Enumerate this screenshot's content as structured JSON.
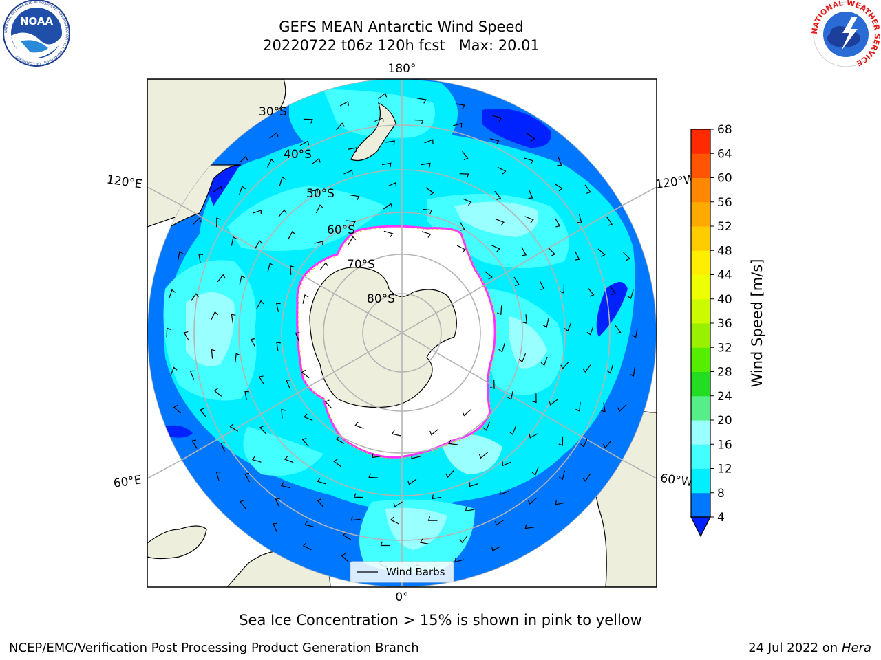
{
  "header": {
    "title": "GEFS MEAN Antarctic Wind Speed",
    "subtitle": "20220722 t06z 120h fcst   Max: 20.01"
  },
  "logos": {
    "left": {
      "icon": "noaa-logo",
      "text": "NOAA",
      "ring_text": "NATIONAL OCEANIC AND ATMOSPHERIC ADMINISTRATION · U.S. DEPARTMENT OF COMMERCE"
    },
    "right": {
      "icon": "nws-logo",
      "ring_text": "NATIONAL WEATHER SERVICE"
    }
  },
  "map": {
    "longitude_labels": {
      "top": "180°",
      "bottom": "0°",
      "upper_left": "120°E",
      "lower_left": "60°E",
      "upper_right": "120°W",
      "lower_right": "60°W"
    },
    "latitude_labels": [
      "30°S",
      "40°S",
      "50°S",
      "60°S",
      "70°S",
      "80°S"
    ],
    "legend_label": "Wind Barbs",
    "colors": {
      "land": "#eeeedc",
      "sea_ice": "#ffffff",
      "ice_edge": "#ff33ff",
      "ice_fringe": "#ffbb22",
      "grid": "#b4b4b4"
    }
  },
  "colorbar": {
    "label": "Wind Speed [m/s]",
    "ticks": [
      "4",
      "8",
      "12",
      "16",
      "20",
      "24",
      "28",
      "32",
      "36",
      "40",
      "44",
      "48",
      "52",
      "56",
      "60",
      "64",
      "68"
    ],
    "colors": [
      "#0077ff",
      "#00eeff",
      "#44ffff",
      "#99ffff",
      "#55ee88",
      "#22dd22",
      "#55ee00",
      "#99f000",
      "#ccfa00",
      "#eeff00",
      "#ffee00",
      "#ffcc00",
      "#ffaa00",
      "#ff8800",
      "#ff5500",
      "#ff2a00"
    ],
    "under_color": "#0022ff"
  },
  "footer": {
    "note": "Sea Ice Concentration > 15% is shown in pink to yellow",
    "left": "NCEP/EMC/Verification Post Processing Product Generation Branch",
    "right_prefix": "24 Jul 2022 on ",
    "right_host": "Hera"
  }
}
